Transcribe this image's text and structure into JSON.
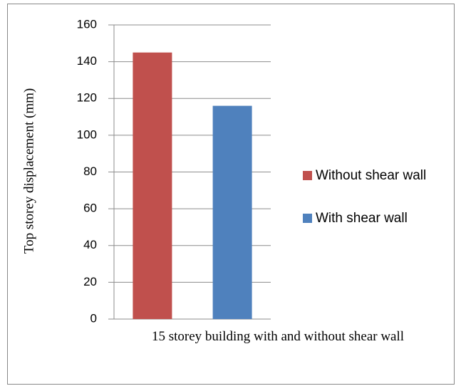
{
  "chart_data": {
    "type": "bar",
    "y_label": "Top storey displacement (mm)",
    "categories": [
      "15 storey building with and without shear wall"
    ],
    "series": [
      {
        "name": "Without shear wall",
        "color": "#c0504d",
        "values": [
          145
        ]
      },
      {
        "name": "With shear wall",
        "color": "#4f81bd",
        "values": [
          116
        ]
      }
    ],
    "ylim": [
      0,
      160
    ],
    "yticks": [
      0,
      20,
      40,
      60,
      80,
      100,
      120,
      140,
      160
    ],
    "grid": true,
    "legend": "right"
  }
}
